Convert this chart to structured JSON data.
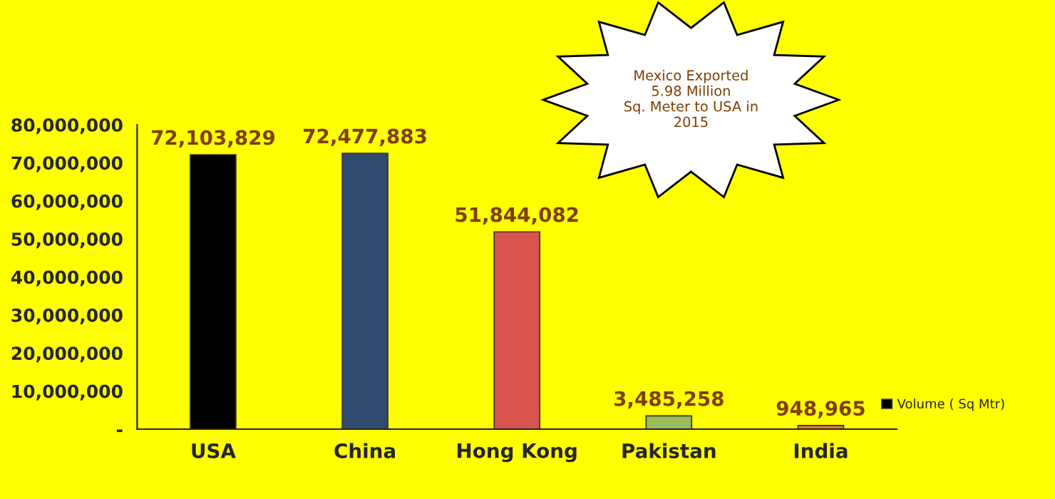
{
  "chart_data": {
    "type": "bar",
    "categories": [
      "USA",
      "China",
      "Hong Kong",
      "Pakistan",
      "India"
    ],
    "series": [
      {
        "name": "Volume ( Sq Mtr)",
        "colors": [
          "#000000",
          "#2f4a6d",
          "#d9534f",
          "#9bbb59",
          "#e07b39"
        ],
        "values": [
          72103829,
          72477883,
          51844082,
          3485258,
          948965
        ],
        "value_labels": [
          "72,103,829",
          "72,477,883",
          "51,844,082",
          "3,485,258",
          "948,965"
        ]
      }
    ],
    "ylim": [
      0,
      80000000
    ],
    "yticks": [
      {
        "value": 0,
        "label": "-"
      },
      {
        "value": 10000000,
        "label": "10,000,000"
      },
      {
        "value": 20000000,
        "label": "20,000,000"
      },
      {
        "value": 30000000,
        "label": "30,000,000"
      },
      {
        "value": 40000000,
        "label": "40,000,000"
      },
      {
        "value": 50000000,
        "label": "50,000,000"
      },
      {
        "value": 60000000,
        "label": "60,000,000"
      },
      {
        "value": 70000000,
        "label": "70,000,000"
      },
      {
        "value": 80000000,
        "label": "80,000,000"
      }
    ],
    "legend": "right",
    "grid": false,
    "annotations": [
      "Mexico Exported\n5.98 Million\nSq. Meter to USA in\n2015"
    ]
  }
}
